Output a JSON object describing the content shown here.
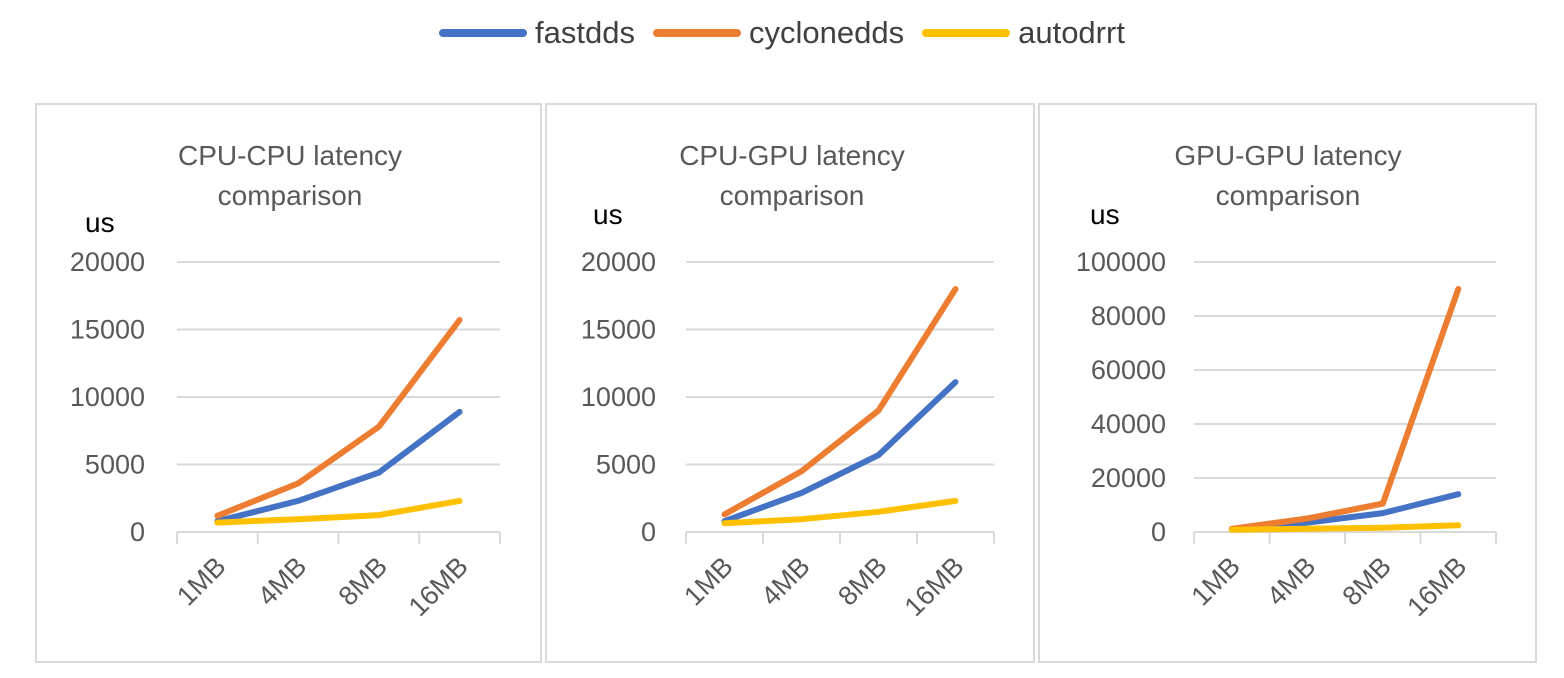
{
  "legend": [
    {
      "label": "fastdds",
      "color": "#4472C4"
    },
    {
      "label": "cyclonedds",
      "color": "#ED7D31"
    },
    {
      "label": "autodrrt",
      "color": "#FFC000"
    }
  ],
  "chart_data": [
    {
      "type": "line",
      "title": [
        "CPU-CPU latency",
        "comparison"
      ],
      "ylabel": "us",
      "xlabel": "",
      "categories": [
        "1MB",
        "4MB",
        "8MB",
        "16MB"
      ],
      "ylim": [
        0,
        20000
      ],
      "yticks": [
        0,
        5000,
        10000,
        15000,
        20000
      ],
      "grid": true,
      "series": [
        {
          "name": "fastdds",
          "color": "#4472C4",
          "values": [
            800,
            2300,
            4400,
            8900
          ]
        },
        {
          "name": "cyclonedds",
          "color": "#ED7D31",
          "values": [
            1200,
            3600,
            7800,
            15700
          ]
        },
        {
          "name": "autodrrt",
          "color": "#FFC000",
          "values": [
            700,
            950,
            1250,
            2300
          ]
        }
      ]
    },
    {
      "type": "line",
      "title": [
        "CPU-GPU latency",
        "comparison"
      ],
      "ylabel": "us",
      "xlabel": "",
      "categories": [
        "1MB",
        "4MB",
        "8MB",
        "16MB"
      ],
      "ylim": [
        0,
        20000
      ],
      "yticks": [
        0,
        5000,
        10000,
        15000,
        20000
      ],
      "grid": true,
      "series": [
        {
          "name": "fastdds",
          "color": "#4472C4",
          "values": [
            800,
            2900,
            5700,
            11100
          ]
        },
        {
          "name": "cyclonedds",
          "color": "#ED7D31",
          "values": [
            1300,
            4500,
            9000,
            18000
          ]
        },
        {
          "name": "autodrrt",
          "color": "#FFC000",
          "values": [
            650,
            950,
            1500,
            2300
          ]
        }
      ]
    },
    {
      "type": "line",
      "title": [
        "GPU-GPU latency",
        "comparison"
      ],
      "ylabel": "us",
      "xlabel": "",
      "categories": [
        "1MB",
        "4MB",
        "8MB",
        "16MB"
      ],
      "ylim": [
        0,
        100000
      ],
      "yticks": [
        0,
        20000,
        40000,
        60000,
        80000,
        100000
      ],
      "grid": true,
      "series": [
        {
          "name": "fastdds",
          "color": "#4472C4",
          "values": [
            1000,
            3500,
            7000,
            14000
          ]
        },
        {
          "name": "cyclonedds",
          "color": "#ED7D31",
          "values": [
            1200,
            5000,
            10500,
            90000
          ]
        },
        {
          "name": "autodrrt",
          "color": "#FFC000",
          "values": [
            800,
            1200,
            1600,
            2500
          ]
        }
      ]
    }
  ]
}
